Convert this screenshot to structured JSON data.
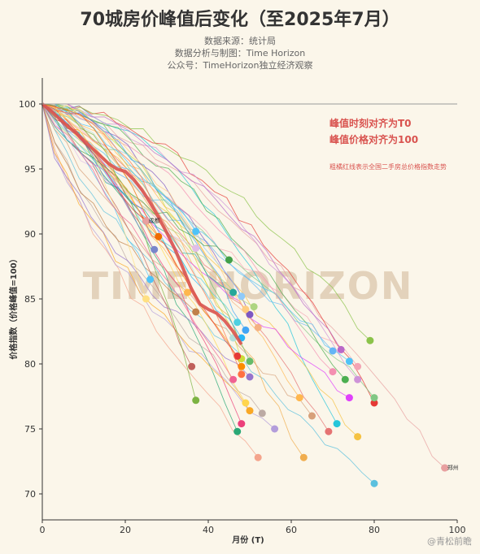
{
  "header": {
    "title": "70城房价峰值后变化（至2025年7月）",
    "source": "数据来源：统计局",
    "analysis": "数据分析与制图：Time Horizon",
    "account": "公众号：TimeHorizon独立经济观察"
  },
  "watermark": "TIME HORIZON",
  "credit": "@青松前瞻",
  "chart_data": {
    "type": "line",
    "xlabel": "月份 (T)",
    "ylabel": "价格指数（价格峰值=100）",
    "xlim": [
      0,
      100
    ],
    "ylim": [
      68,
      102
    ],
    "xticks": [
      0,
      20,
      40,
      60,
      80,
      100
    ],
    "yticks": [
      70,
      75,
      80,
      85,
      90,
      95,
      100
    ],
    "grid": false,
    "annotations": {
      "line1": "峰值时刻对齐为T0",
      "line2": "峰值价格对齐为100",
      "note": "粗橘红线表示全国二手房总价格指数走势"
    },
    "labeled_cities": [
      {
        "name": "郑州",
        "x": 97,
        "y": 72
      },
      {
        "name": "成都",
        "x": 25,
        "y": 91
      }
    ],
    "national": {
      "color": "#d9534f",
      "x": [
        0,
        2,
        4,
        6,
        8,
        10,
        12,
        14,
        16,
        18,
        20,
        22,
        24,
        26,
        28,
        30,
        32,
        34,
        36,
        38,
        40,
        42,
        44,
        46,
        48
      ],
      "y": [
        100,
        99.5,
        98.9,
        98.3,
        97.8,
        97.2,
        96.6,
        96.0,
        95.4,
        95.0,
        94.8,
        94.2,
        93.4,
        92.4,
        91.3,
        90.1,
        88.8,
        87.3,
        85.7,
        84.6,
        84.2,
        83.9,
        83.3,
        82.5,
        81.5
      ]
    },
    "cities": [
      {
        "end_x": 97,
        "end_y": 72.0,
        "color": "#e8a0a0"
      },
      {
        "end_x": 80,
        "end_y": 70.8,
        "color": "#5bc0de"
      },
      {
        "end_x": 63,
        "end_y": 72.8,
        "color": "#f0ad4e"
      },
      {
        "end_x": 52,
        "end_y": 72.8,
        "color": "#f4a48c"
      },
      {
        "end_x": 47,
        "end_y": 74.8,
        "color": "#2aa876"
      },
      {
        "end_x": 56,
        "end_y": 75.0,
        "color": "#b39ddb"
      },
      {
        "end_x": 69,
        "end_y": 74.8,
        "color": "#e57373"
      },
      {
        "end_x": 71,
        "end_y": 75.4,
        "color": "#26c6da"
      },
      {
        "end_x": 76,
        "end_y": 74.4,
        "color": "#f5c242"
      },
      {
        "end_x": 80,
        "end_y": 77.0,
        "color": "#e53935"
      },
      {
        "end_x": 80,
        "end_y": 77.4,
        "color": "#81c784"
      },
      {
        "end_x": 79,
        "end_y": 81.8,
        "color": "#8bc34a"
      },
      {
        "end_x": 76,
        "end_y": 79.8,
        "color": "#f4a4b4"
      },
      {
        "end_x": 76,
        "end_y": 78.8,
        "color": "#ce93d8"
      },
      {
        "end_x": 74,
        "end_y": 80.2,
        "color": "#4fc3f7"
      },
      {
        "end_x": 72,
        "end_y": 81.1,
        "color": "#ba68c8"
      },
      {
        "end_x": 70,
        "end_y": 81.0,
        "color": "#64b5f6"
      },
      {
        "end_x": 73,
        "end_y": 78.8,
        "color": "#4caf50"
      },
      {
        "end_x": 74,
        "end_y": 77.4,
        "color": "#e040fb"
      },
      {
        "end_x": 70,
        "end_y": 79.4,
        "color": "#f48fb1"
      },
      {
        "end_x": 65,
        "end_y": 76.0,
        "color": "#d7a07a"
      },
      {
        "end_x": 62,
        "end_y": 77.4,
        "color": "#ffb74d"
      },
      {
        "end_x": 53,
        "end_y": 76.2,
        "color": "#bcaaa4"
      },
      {
        "end_x": 48,
        "end_y": 75.4,
        "color": "#ec407a"
      },
      {
        "end_x": 50,
        "end_y": 76.4,
        "color": "#f9a825"
      },
      {
        "end_x": 49,
        "end_y": 77.0,
        "color": "#ffd54f"
      },
      {
        "end_x": 50,
        "end_y": 79.0,
        "color": "#9575cd"
      },
      {
        "end_x": 48,
        "end_y": 79.8,
        "color": "#fb8c00"
      },
      {
        "end_x": 48,
        "end_y": 80.4,
        "color": "#cddc39"
      },
      {
        "end_x": 47,
        "end_y": 80.6,
        "color": "#e53935"
      },
      {
        "end_x": 50,
        "end_y": 80.2,
        "color": "#66bb6a"
      },
      {
        "end_x": 48,
        "end_y": 82.0,
        "color": "#29b6f6"
      },
      {
        "end_x": 49,
        "end_y": 82.6,
        "color": "#42a5f5"
      },
      {
        "end_x": 52,
        "end_y": 82.8,
        "color": "#f4b183"
      },
      {
        "end_x": 50,
        "end_y": 83.8,
        "color": "#7e57c2"
      },
      {
        "end_x": 47,
        "end_y": 83.2,
        "color": "#4dd0e1"
      },
      {
        "end_x": 49,
        "end_y": 84.2,
        "color": "#ffcc80"
      },
      {
        "end_x": 51,
        "end_y": 84.4,
        "color": "#aed581"
      },
      {
        "end_x": 48,
        "end_y": 85.2,
        "color": "#90caf9"
      },
      {
        "end_x": 46,
        "end_y": 85.5,
        "color": "#26a69a"
      },
      {
        "end_x": 46,
        "end_y": 82.0,
        "color": "#b2dfdb"
      },
      {
        "end_x": 45,
        "end_y": 88.0,
        "color": "#43a047"
      },
      {
        "end_x": 37,
        "end_y": 90.2,
        "color": "#4fc3f7"
      },
      {
        "end_x": 37,
        "end_y": 88.9,
        "color": "#e1bee7"
      },
      {
        "end_x": 35,
        "end_y": 85.5,
        "color": "#ffb74d"
      },
      {
        "end_x": 37,
        "end_y": 84.0,
        "color": "#c0804a"
      },
      {
        "end_x": 36,
        "end_y": 79.8,
        "color": "#c0605a"
      },
      {
        "end_x": 37,
        "end_y": 77.2,
        "color": "#7cb342"
      },
      {
        "end_x": 27,
        "end_y": 88.8,
        "color": "#7986cb"
      },
      {
        "end_x": 28,
        "end_y": 89.8,
        "color": "#ef6c00"
      },
      {
        "end_x": 26,
        "end_y": 86.5,
        "color": "#4fc3f7"
      },
      {
        "end_x": 25,
        "end_y": 85.0,
        "color": "#ffe082"
      },
      {
        "end_x": 25,
        "end_y": 91.0,
        "color": "#d32f2f"
      },
      {
        "end_x": 48,
        "end_y": 79.2,
        "color": "#ff7043"
      },
      {
        "end_x": 46,
        "end_y": 78.8,
        "color": "#f06292"
      }
    ]
  }
}
